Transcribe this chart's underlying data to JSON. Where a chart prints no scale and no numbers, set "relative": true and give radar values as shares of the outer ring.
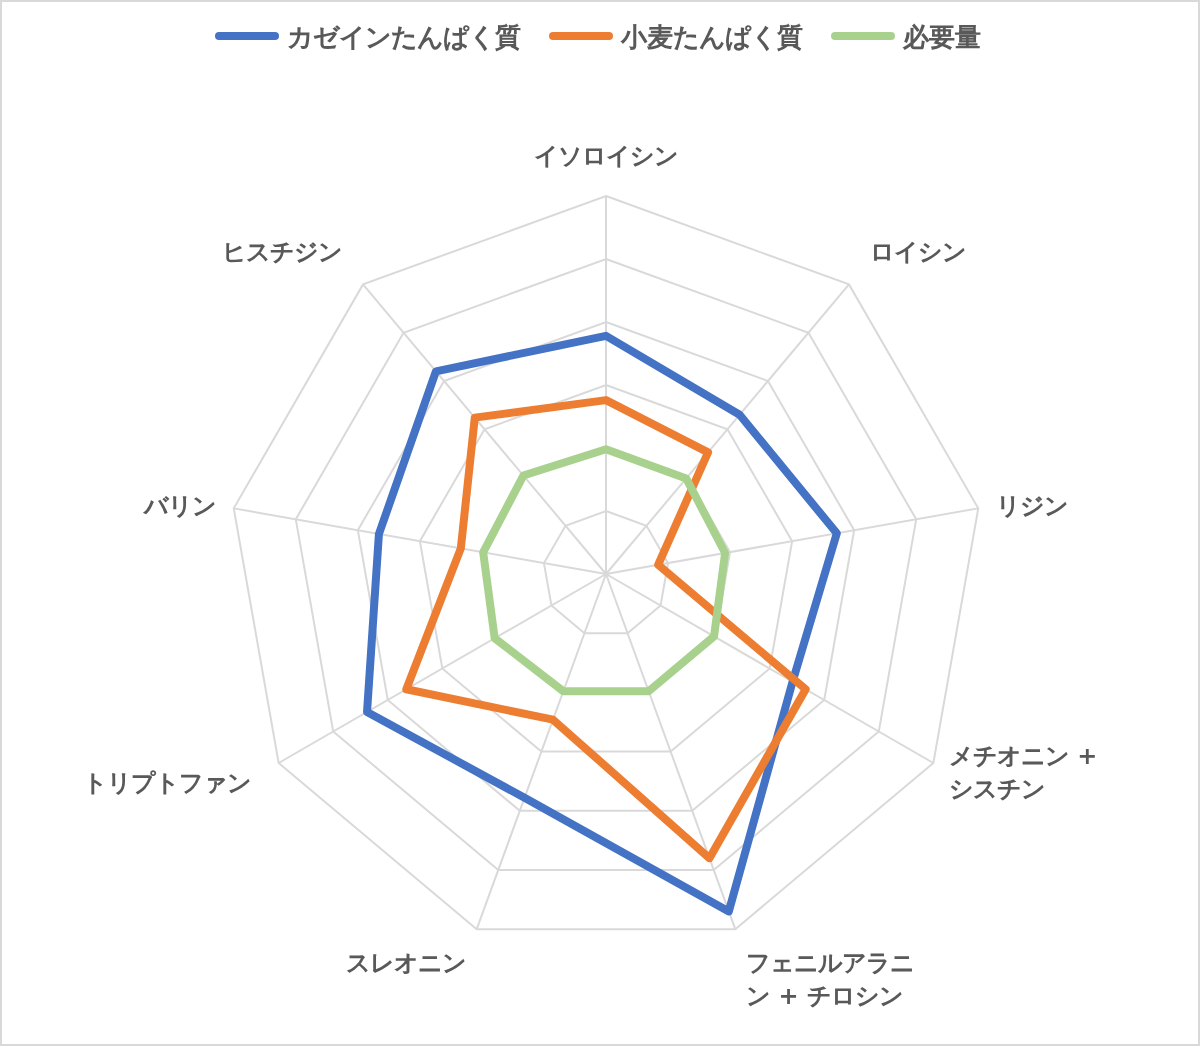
{
  "chart_data": {
    "type": "radar",
    "relative": true,
    "grid": true,
    "legend": "top",
    "categories": [
      "イソロイシン",
      "ロイシン",
      "リジン",
      "メチオニン + シスチン",
      "フェニルアラニン + チロシン",
      "スレオニン",
      "トリプトファン",
      "バリン",
      "ヒスチジン"
    ],
    "series": [
      {
        "name": "カゼインたんぱく質",
        "color": "#4472c4",
        "values": [
          0.63,
          0.55,
          0.62,
          0.57,
          0.95,
          0.63,
          0.73,
          0.61,
          0.7
        ]
      },
      {
        "name": "小麦たんぱく質",
        "color": "#ed7d31",
        "values": [
          0.46,
          0.42,
          0.14,
          0.61,
          0.8,
          0.41,
          0.61,
          0.39,
          0.54
        ]
      },
      {
        "name": "必要量",
        "color": "#a9d18e",
        "values": [
          0.33,
          0.33,
          0.32,
          0.33,
          0.33,
          0.33,
          0.34,
          0.33,
          0.34
        ]
      }
    ]
  }
}
